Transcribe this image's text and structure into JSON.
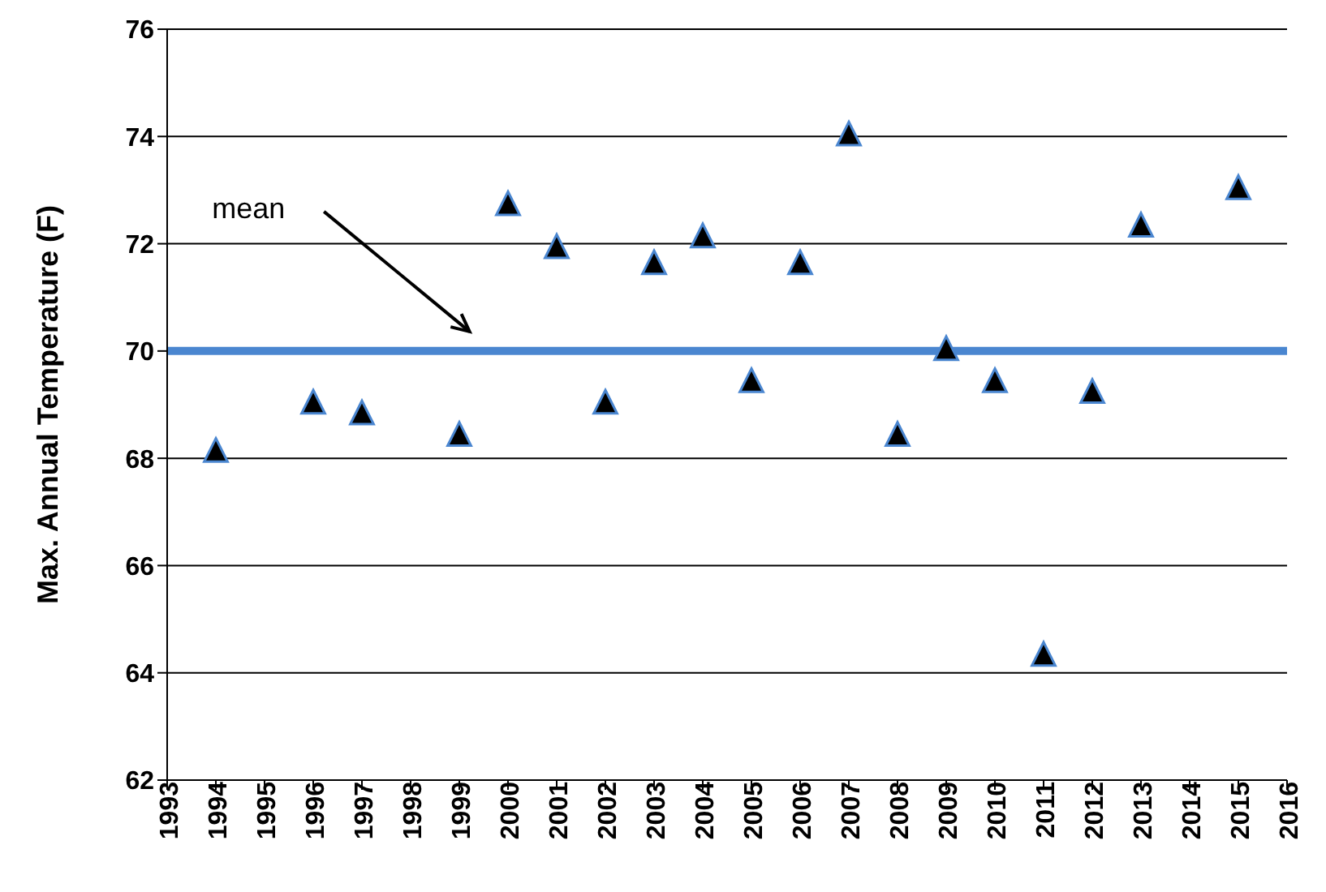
{
  "chart_data": {
    "type": "scatter",
    "ylabel": "Max. Annual Temperature (F)",
    "x": [
      1994,
      1996,
      1997,
      1999,
      2000,
      2001,
      2002,
      2003,
      2004,
      2005,
      2006,
      2007,
      2008,
      2009,
      2010,
      2011,
      2012,
      2013,
      2015
    ],
    "series": [
      {
        "color": "#000000",
        "values": [
          68.1,
          69.0,
          68.8,
          68.4,
          72.7,
          71.9,
          69.0,
          71.6,
          72.1,
          69.4,
          71.6,
          74.0,
          68.4,
          70.0,
          69.4,
          64.3,
          69.2,
          72.3,
          73.0
        ]
      }
    ],
    "xlim": [
      1993,
      2016
    ],
    "xticks": [
      1993,
      1994,
      1995,
      1996,
      1997,
      1998,
      1999,
      2000,
      2001,
      2002,
      2003,
      2004,
      2005,
      2006,
      2007,
      2008,
      2009,
      2010,
      2011,
      2012,
      2013,
      2014,
      2015,
      2016
    ],
    "ylim": [
      62,
      76
    ],
    "yticks": [
      62,
      64,
      66,
      68,
      70,
      72,
      74,
      76
    ],
    "ref_lines": [
      {
        "axis": "y",
        "value": 70,
        "color": "#4a86d0"
      }
    ],
    "annotations": [
      "mean"
    ],
    "grid": "y",
    "marker": "triangle",
    "legend": false
  }
}
